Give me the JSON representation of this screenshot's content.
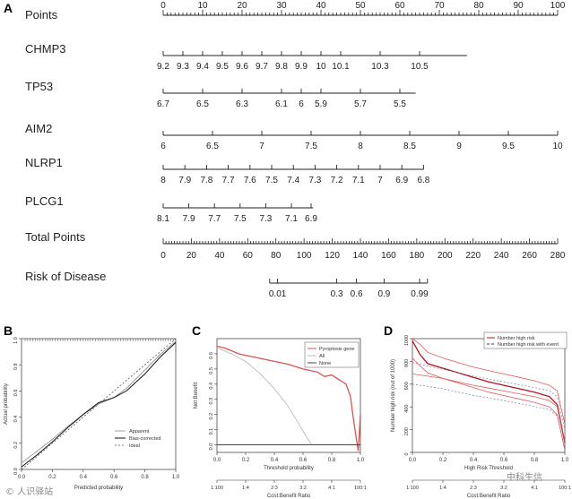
{
  "watermarks": {
    "left": "© 人识驿站",
    "right": "中科生信"
  },
  "chart_data": [
    {
      "panel": "A",
      "type": "nomogram",
      "rows": [
        {
          "label": "Points",
          "ticks": [
            {
              "pos": 0,
              "label": "0"
            },
            {
              "pos": 10,
              "label": "10"
            },
            {
              "pos": 20,
              "label": "20"
            },
            {
              "pos": 30,
              "label": "30"
            },
            {
              "pos": 40,
              "label": "40"
            },
            {
              "pos": 50,
              "label": "50"
            },
            {
              "pos": 60,
              "label": "60"
            },
            {
              "pos": 70,
              "label": "70"
            },
            {
              "pos": 80,
              "label": "80"
            },
            {
              "pos": 90,
              "label": "90"
            },
            {
              "pos": 100,
              "label": "100"
            }
          ]
        },
        {
          "label": "CHMP3",
          "ticks": [
            {
              "pos": 0,
              "label": "9.2"
            },
            {
              "pos": 5,
              "label": "9.3"
            },
            {
              "pos": 10,
              "label": "9.4"
            },
            {
              "pos": 15,
              "label": "9.5"
            },
            {
              "pos": 20,
              "label": "9.6"
            },
            {
              "pos": 25,
              "label": "9.7"
            },
            {
              "pos": 30,
              "label": "9.8"
            },
            {
              "pos": 35,
              "label": "9.9"
            },
            {
              "pos": 40,
              "label": "10"
            },
            {
              "pos": 45,
              "label": "10.1"
            },
            {
              "pos": 55,
              "label": "10.3"
            },
            {
              "pos": 65,
              "label": "10.5"
            }
          ],
          "end": 77
        },
        {
          "label": "TP53",
          "ticks": [
            {
              "pos": 0,
              "label": "6.7"
            },
            {
              "pos": 10,
              "label": "6.5"
            },
            {
              "pos": 20,
              "label": "6.3"
            },
            {
              "pos": 30,
              "label": "6.1"
            },
            {
              "pos": 35,
              "label": "6"
            },
            {
              "pos": 40,
              "label": "5.9"
            },
            {
              "pos": 50,
              "label": "5.7"
            },
            {
              "pos": 60,
              "label": "5.5"
            }
          ],
          "end": 64
        },
        {
          "label": "AIM2",
          "ticks": [
            {
              "pos": 0,
              "label": "6"
            },
            {
              "pos": 12.5,
              "label": "6.5"
            },
            {
              "pos": 25,
              "label": "7"
            },
            {
              "pos": 37.5,
              "label": "7.5"
            },
            {
              "pos": 50,
              "label": "8"
            },
            {
              "pos": 62.5,
              "label": "8.5"
            },
            {
              "pos": 75,
              "label": "9"
            },
            {
              "pos": 87.5,
              "label": "9.5"
            },
            {
              "pos": 100,
              "label": "10"
            }
          ],
          "end": 100
        },
        {
          "label": "NLRP1",
          "ticks": [
            {
              "pos": 0,
              "label": "8"
            },
            {
              "pos": 5.5,
              "label": "7.9"
            },
            {
              "pos": 11,
              "label": "7.8"
            },
            {
              "pos": 16.5,
              "label": "7.7"
            },
            {
              "pos": 22,
              "label": "7.6"
            },
            {
              "pos": 27.5,
              "label": "7.5"
            },
            {
              "pos": 33,
              "label": "7.4"
            },
            {
              "pos": 38.5,
              "label": "7.3"
            },
            {
              "pos": 44,
              "label": "7.2"
            },
            {
              "pos": 49.5,
              "label": "7.1"
            },
            {
              "pos": 55,
              "label": "7"
            },
            {
              "pos": 60.5,
              "label": "6.9"
            },
            {
              "pos": 66,
              "label": "6.8"
            }
          ],
          "end": 66
        },
        {
          "label": "PLCG1",
          "ticks": [
            {
              "pos": 0,
              "label": "8.1"
            },
            {
              "pos": 6.5,
              "label": "7.9"
            },
            {
              "pos": 13,
              "label": "7.7"
            },
            {
              "pos": 19.5,
              "label": "7.5"
            },
            {
              "pos": 26,
              "label": "7.3"
            },
            {
              "pos": 32.5,
              "label": "7.1"
            },
            {
              "pos": 37.5,
              "label": "6.9"
            }
          ],
          "end": 38
        },
        {
          "label": "Total Points",
          "ticks": [
            {
              "pos": 0,
              "label": "0"
            },
            {
              "pos": 7.14,
              "label": "20"
            },
            {
              "pos": 14.29,
              "label": "40"
            },
            {
              "pos": 21.43,
              "label": "60"
            },
            {
              "pos": 28.57,
              "label": "80"
            },
            {
              "pos": 35.71,
              "label": "100"
            },
            {
              "pos": 42.86,
              "label": "120"
            },
            {
              "pos": 50,
              "label": "140"
            },
            {
              "pos": 57.14,
              "label": "160"
            },
            {
              "pos": 64.29,
              "label": "180"
            },
            {
              "pos": 71.43,
              "label": "200"
            },
            {
              "pos": 78.57,
              "label": "220"
            },
            {
              "pos": 85.71,
              "label": "240"
            },
            {
              "pos": 92.86,
              "label": "260"
            },
            {
              "pos": 100,
              "label": "280"
            }
          ],
          "end": 100
        },
        {
          "label": "Risk of Disease",
          "ticks": [
            {
              "pos": 29,
              "label": "0.01"
            },
            {
              "pos": 44,
              "label": "0.3"
            },
            {
              "pos": 49,
              "label": "0.6"
            },
            {
              "pos": 56,
              "label": "0.9"
            },
            {
              "pos": 65,
              "label": "0.99"
            }
          ],
          "start": 27,
          "end": 67
        }
      ]
    },
    {
      "panel": "B",
      "type": "line",
      "xlabel": "Predicted probability",
      "ylabel": "Actual probability",
      "xlim": [
        0,
        1
      ],
      "ylim": [
        0,
        1
      ],
      "xticks": [
        "0.0",
        "0.2",
        "0.4",
        "0.6",
        "0.8",
        "1.0"
      ],
      "yticks": [
        "0.0",
        "0.2",
        "0.4",
        "0.6",
        "0.8",
        "1.0"
      ],
      "legend": [
        "Apparent",
        "Bias-corrected",
        "Ideal"
      ],
      "series": [
        {
          "name": "Ideal",
          "x": [
            0,
            1
          ],
          "y": [
            0,
            1
          ]
        },
        {
          "name": "Apparent",
          "x": [
            0,
            0.1,
            0.2,
            0.3,
            0.4,
            0.5,
            0.6,
            0.68,
            0.8,
            0.9,
            1.0
          ],
          "y": [
            0.05,
            0.14,
            0.23,
            0.33,
            0.42,
            0.5,
            0.55,
            0.62,
            0.76,
            0.88,
            0.98
          ]
        },
        {
          "name": "Bias-corrected",
          "x": [
            0,
            0.1,
            0.2,
            0.3,
            0.4,
            0.5,
            0.6,
            0.68,
            0.8,
            0.9,
            1.0
          ],
          "y": [
            0.02,
            0.11,
            0.21,
            0.32,
            0.42,
            0.51,
            0.55,
            0.6,
            0.73,
            0.86,
            0.97
          ]
        }
      ]
    },
    {
      "panel": "C",
      "type": "line",
      "xlabel": "Threshold probability",
      "ylabel": "Net Benefit",
      "second_axis_label": "Cost:Benefit Ratio",
      "xticks": [
        "0.0",
        "0.2",
        "0.4",
        "0.6",
        "0.8",
        "1.0"
      ],
      "yticks": [
        "0.0",
        "0.1",
        "0.2",
        "0.3",
        "0.4",
        "0.5",
        "0.6"
      ],
      "ratio_ticks": [
        "1:100",
        "1:4",
        "2:3",
        "3:2",
        "4:1",
        "100:1"
      ],
      "xlim": [
        0,
        1
      ],
      "ylim": [
        -0.05,
        0.7
      ],
      "legend": [
        "Pyroptosis gene",
        "All",
        "None"
      ],
      "series": [
        {
          "name": "Pyroptosis gene",
          "color": "#d9534f",
          "x": [
            0,
            0.05,
            0.1,
            0.15,
            0.2,
            0.3,
            0.4,
            0.5,
            0.6,
            0.7,
            0.75,
            0.8,
            0.85,
            0.9,
            0.93,
            0.95,
            0.97,
            0.985,
            1.0
          ],
          "y": [
            0.65,
            0.64,
            0.62,
            0.6,
            0.59,
            0.57,
            0.55,
            0.53,
            0.5,
            0.48,
            0.45,
            0.46,
            0.43,
            0.4,
            0.32,
            0.18,
            0.05,
            -0.04,
            0.2
          ]
        },
        {
          "name": "All",
          "color": "#bbbbbb",
          "x": [
            0,
            0.1,
            0.2,
            0.3,
            0.4,
            0.5,
            0.6,
            0.66
          ],
          "y": [
            0.64,
            0.6,
            0.55,
            0.47,
            0.37,
            0.25,
            0.09,
            0.0
          ]
        },
        {
          "name": "None",
          "color": "#444444",
          "x": [
            0,
            1
          ],
          "y": [
            0,
            0
          ]
        }
      ]
    },
    {
      "panel": "D",
      "type": "line",
      "xlabel": "High Risk Threshold",
      "ylabel": "Number high risk (out of 1000)",
      "second_axis_label": "Cost:Benefit Ratio",
      "xticks": [
        "0.0",
        "0.2",
        "0.4",
        "0.6",
        "0.8",
        "1.0"
      ],
      "yticks": [
        "0",
        "200",
        "400",
        "600",
        "800",
        "1000"
      ],
      "ratio_ticks": [
        "1:100",
        "1:4",
        "2:3",
        "3:2",
        "4:1",
        "100:1"
      ],
      "xlim": [
        0,
        1
      ],
      "ylim": [
        0,
        1000
      ],
      "legend": [
        "Number high risk",
        "Number high risk with event"
      ],
      "series": [
        {
          "name": "Number high risk",
          "x": [
            0,
            0.05,
            0.1,
            0.2,
            0.3,
            0.4,
            0.5,
            0.6,
            0.7,
            0.8,
            0.9,
            0.95,
            1.0
          ],
          "y": [
            980,
            860,
            780,
            740,
            700,
            660,
            620,
            590,
            560,
            530,
            490,
            420,
            80
          ]
        },
        {
          "name": "Number high risk upper",
          "x": [
            0,
            0.05,
            0.1,
            0.2,
            0.3,
            0.4,
            0.5,
            0.6,
            0.7,
            0.8,
            0.9,
            0.95,
            1.0
          ],
          "y": [
            1000,
            950,
            880,
            830,
            790,
            750,
            720,
            690,
            660,
            630,
            590,
            540,
            250
          ]
        },
        {
          "name": "Number high risk lower",
          "x": [
            0,
            0.05,
            0.1,
            0.2,
            0.3,
            0.4,
            0.5,
            0.6,
            0.7,
            0.8,
            0.9,
            0.95,
            1.0
          ],
          "y": [
            830,
            760,
            700,
            650,
            610,
            570,
            530,
            500,
            470,
            440,
            400,
            330,
            20
          ]
        },
        {
          "name": "Number high risk with event",
          "x": [
            0,
            0.1,
            0.2,
            0.3,
            0.4,
            0.5,
            0.6,
            0.7,
            0.8,
            0.9,
            0.95,
            1.0
          ],
          "y": [
            690,
            670,
            650,
            620,
            590,
            565,
            540,
            515,
            490,
            455,
            400,
            70
          ]
        },
        {
          "name": "With event upper",
          "x": [
            0,
            0.1,
            0.2,
            0.3,
            0.4,
            0.5,
            0.6,
            0.7,
            0.8,
            0.9,
            0.95,
            1.0
          ],
          "y": [
            790,
            760,
            730,
            700,
            670,
            645,
            620,
            595,
            570,
            540,
            490,
            200
          ]
        },
        {
          "name": "With event lower",
          "x": [
            0,
            0.1,
            0.2,
            0.3,
            0.4,
            0.5,
            0.6,
            0.7,
            0.8,
            0.9,
            0.95,
            1.0
          ],
          "y": [
            600,
            580,
            560,
            530,
            500,
            480,
            455,
            430,
            405,
            375,
            320,
            30
          ]
        }
      ]
    }
  ]
}
